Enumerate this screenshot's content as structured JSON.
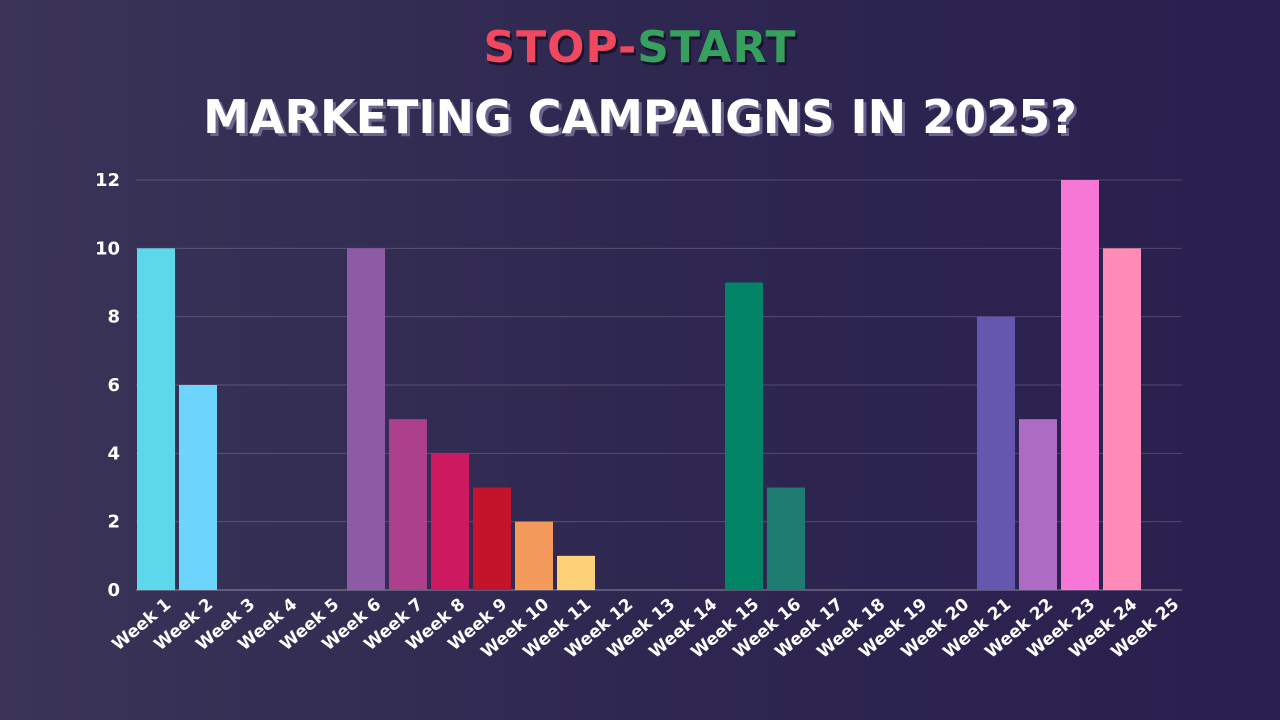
{
  "title": {
    "part1": "STOP",
    "separator": "-",
    "part2": "START",
    "line2": "MARKETING CAMPAIGNS IN 2025?",
    "part1_color": "#f0485f",
    "separator_color": "#f0485f",
    "part2_color": "#36a15e"
  },
  "chart_data": {
    "type": "bar",
    "categories": [
      "Week 1",
      "Week 2",
      "Week 3",
      "Week 4",
      "Week 5",
      "Week 6",
      "Week 7",
      "Week 8",
      "Week 9",
      "Week 10",
      "Week 11",
      "Week 12",
      "Week 13",
      "Week 14",
      "Week 15",
      "Week 16",
      "Week 17",
      "Week 18",
      "Week 19",
      "Week 20",
      "Week 21",
      "Week 22",
      "Week 23",
      "Week 24",
      "Week 25"
    ],
    "values": [
      10,
      6,
      0,
      0,
      0,
      10,
      5,
      4,
      3,
      2,
      1,
      0,
      0,
      0,
      9,
      3,
      0,
      0,
      0,
      0,
      8,
      5,
      12,
      10,
      0
    ],
    "colors": [
      "#5dd8ea",
      "#6dd5fb",
      "#5dd8ea",
      "#5dd8ea",
      "#5dd8ea",
      "#8d5ba6",
      "#ad408d",
      "#cc1960",
      "#c3142b",
      "#f49b5c",
      "#fed178",
      "#5dd8ea",
      "#5dd8ea",
      "#5dd8ea",
      "#008465",
      "#1f7c70",
      "#5dd8ea",
      "#5dd8ea",
      "#5dd8ea",
      "#5dd8ea",
      "#6556b0",
      "#ad6bc4",
      "#f677d5",
      "#ff8bb6",
      "#5dd8ea"
    ],
    "yticks": [
      0,
      2,
      4,
      6,
      8,
      10,
      12
    ],
    "ylim": [
      0,
      12
    ],
    "grid": true,
    "title": "",
    "xlabel": "",
    "ylabel": ""
  }
}
